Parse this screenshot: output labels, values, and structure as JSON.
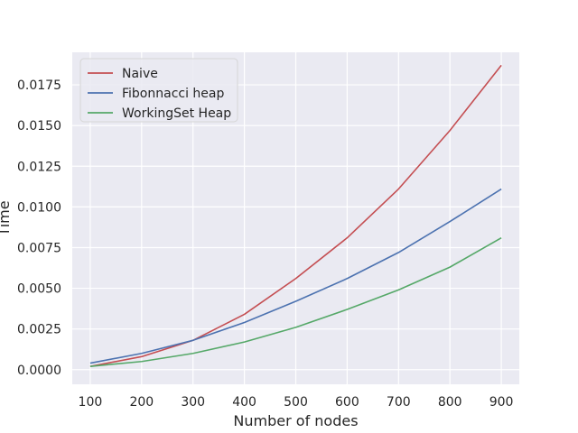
{
  "chart_data": {
    "type": "line",
    "x": [
      100,
      200,
      300,
      400,
      500,
      600,
      700,
      800,
      900
    ],
    "xlabel": "Number of nodes",
    "ylabel": "Time",
    "xlim": [
      65,
      935
    ],
    "ylim": [
      -0.0009,
      0.0195
    ],
    "xticks": [
      100,
      200,
      300,
      400,
      500,
      600,
      700,
      800,
      900
    ],
    "yticks": [
      0.0,
      0.0025,
      0.005,
      0.0075,
      0.01,
      0.0125,
      0.015,
      0.0175
    ],
    "ytick_labels": [
      "0.0000",
      "0.0025",
      "0.0050",
      "0.0075",
      "0.0100",
      "0.0125",
      "0.0150",
      "0.0175"
    ],
    "grid": true,
    "legend_position": "top-left",
    "series": [
      {
        "name": "Naive",
        "color": "#c44e52",
        "values": [
          0.0002,
          0.0008,
          0.0018,
          0.0034,
          0.0056,
          0.0081,
          0.0111,
          0.0147,
          0.0187
        ]
      },
      {
        "name": "Fibonnacci heap",
        "color": "#4c72b0",
        "values": [
          0.0004,
          0.001,
          0.0018,
          0.0029,
          0.0042,
          0.0056,
          0.0072,
          0.0091,
          0.0111
        ]
      },
      {
        "name": "WorkingSet Heap",
        "color": "#55a868",
        "values": [
          0.0002,
          0.0005,
          0.001,
          0.0017,
          0.0026,
          0.0037,
          0.0049,
          0.0063,
          0.0081
        ]
      }
    ]
  }
}
